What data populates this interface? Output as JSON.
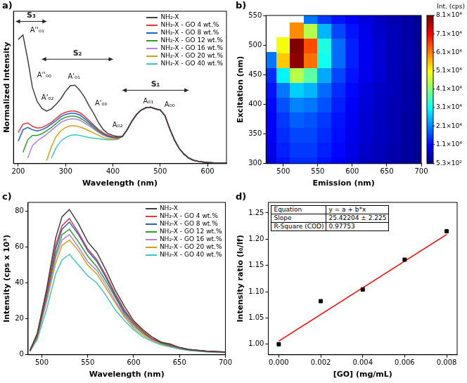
{
  "chart_data": [
    {
      "panel": "a)",
      "type": "line",
      "x_label": "Wavelength (nm)",
      "y_label": "Normalized Intensity",
      "xlim": [
        190,
        640
      ],
      "xticks": [
        200,
        300,
        400,
        500,
        600
      ],
      "ylim": [
        0,
        2.7
      ],
      "tick_labels": "x",
      "grid": false,
      "legend": "upper right",
      "x": [
        200,
        210,
        220,
        230,
        240,
        250,
        260,
        270,
        280,
        290,
        300,
        310,
        320,
        330,
        340,
        350,
        360,
        370,
        380,
        390,
        400,
        410,
        420,
        430,
        440,
        450,
        460,
        470,
        480,
        490,
        500,
        510,
        520,
        530,
        540,
        550,
        560,
        570,
        580,
        590,
        600,
        620,
        640
      ],
      "series": [
        {
          "name": "NH₂-X",
          "color": "#404040",
          "values": [
            2.2,
            2.28,
            1.85,
            1.35,
            1.1,
            0.98,
            0.93,
            0.97,
            1.05,
            1.15,
            1.28,
            1.38,
            1.39,
            1.3,
            1.18,
            1.02,
            0.88,
            0.72,
            0.6,
            0.53,
            0.5,
            0.48,
            0.48,
            0.6,
            0.75,
            0.87,
            0.95,
            0.99,
            1.0,
            0.97,
            0.95,
            0.85,
            0.62,
            0.42,
            0.27,
            0.17,
            0.1,
            0.06,
            0.04,
            0.03,
            0.02,
            0.01,
            0.01
          ]
        },
        {
          "name": "NH₂-X - GO  4 wt.%",
          "color": "#e8343a",
          "values": [
            0.55,
            0.7,
            0.72,
            0.66,
            0.63,
            0.64,
            0.68,
            0.73,
            0.8,
            0.87,
            0.91,
            0.93,
            0.93,
            0.9,
            0.84,
            0.76,
            0.68,
            0.6,
            0.54,
            0.5,
            0.48,
            0.47,
            0.48,
            0.6,
            0.75,
            0.87,
            0.95,
            0.99,
            1.0,
            0.97,
            0.95,
            0.85,
            0.62,
            0.42,
            0.27,
            0.17,
            0.1,
            0.06,
            0.04,
            0.03,
            0.02,
            0.01,
            0.01
          ]
        },
        {
          "name": "NH₂-X - GO  8 wt.%",
          "color": "#1f5fd6",
          "values": [
            0.4,
            0.6,
            0.64,
            0.6,
            0.58,
            0.6,
            0.64,
            0.7,
            0.76,
            0.83,
            0.87,
            0.89,
            0.89,
            0.86,
            0.8,
            0.73,
            0.66,
            0.59,
            0.53,
            0.49,
            0.47,
            0.46,
            0.48,
            0.6,
            0.75,
            0.87,
            0.95,
            0.99,
            1.0,
            0.97,
            0.95,
            0.85,
            0.62,
            0.42,
            0.27,
            0.17,
            0.1,
            0.06,
            0.04,
            0.03,
            0.02,
            0.01,
            0.01
          ]
        },
        {
          "name": "NH₂-X - GO 12 wt.%",
          "color": "#2ca02c",
          "values": [
            null,
            0.2,
            0.42,
            0.5,
            0.5,
            0.53,
            0.58,
            0.64,
            0.71,
            0.78,
            0.82,
            0.84,
            0.84,
            0.81,
            0.76,
            0.7,
            0.63,
            0.57,
            0.52,
            0.48,
            0.46,
            0.45,
            0.48,
            0.6,
            0.75,
            0.87,
            0.95,
            0.99,
            1.0,
            0.97,
            0.95,
            0.85,
            0.62,
            0.42,
            0.27,
            0.17,
            0.1,
            0.06,
            0.04,
            0.03,
            0.02,
            0.01,
            0.01
          ]
        },
        {
          "name": "NH₂-X - GO 16 wt.%",
          "color": "#b77fe0",
          "values": [
            null,
            null,
            0.1,
            0.32,
            0.4,
            0.46,
            0.52,
            0.59,
            0.66,
            0.73,
            0.77,
            0.79,
            0.79,
            0.77,
            0.72,
            0.67,
            0.61,
            0.55,
            0.5,
            0.47,
            0.45,
            0.44,
            0.48,
            0.6,
            0.75,
            0.87,
            0.95,
            0.99,
            1.0,
            0.97,
            0.95,
            0.85,
            0.62,
            0.42,
            0.27,
            0.17,
            0.1,
            0.06,
            0.04,
            0.03,
            0.02,
            0.01,
            0.01
          ]
        },
        {
          "name": "NH₂-X - GO 20 wt.%",
          "color": "#d4a017",
          "values": [
            null,
            null,
            null,
            null,
            null,
            null,
            0.05,
            0.3,
            0.48,
            0.58,
            0.64,
            0.67,
            0.67,
            0.65,
            0.62,
            0.58,
            0.54,
            0.5,
            0.46,
            0.44,
            0.43,
            0.43,
            0.48,
            0.6,
            0.75,
            0.87,
            0.95,
            0.99,
            1.0,
            0.97,
            0.95,
            0.85,
            0.62,
            0.42,
            0.27,
            0.17,
            0.1,
            0.06,
            0.04,
            0.03,
            0.02,
            0.01,
            0.01
          ]
        },
        {
          "name": "NH₂-X - GO 40 wt.%",
          "color": "#3cc8c8",
          "values": [
            null,
            null,
            null,
            null,
            null,
            null,
            null,
            0.1,
            0.28,
            0.4,
            0.46,
            0.5,
            0.51,
            0.5,
            0.48,
            0.46,
            0.45,
            0.44,
            0.43,
            0.42,
            0.42,
            0.43,
            0.48,
            0.6,
            0.75,
            0.87,
            0.95,
            0.99,
            1.0,
            0.97,
            0.95,
            0.85,
            0.62,
            0.42,
            0.27,
            0.17,
            0.1,
            0.06,
            0.04,
            0.03,
            0.02,
            0.01,
            0.01
          ]
        }
      ],
      "annotations": [
        {
          "text": "A''₀₁",
          "x": 240,
          "y": 2.3
        },
        {
          "text": "A''₀₀",
          "x": 255,
          "y": 1.5
        },
        {
          "text": "A'₀₂",
          "x": 262,
          "y": 1.1
        },
        {
          "text": "A'₀₁",
          "x": 318,
          "y": 1.48
        },
        {
          "text": "A'₀₀",
          "x": 375,
          "y": 1.0
        },
        {
          "text": "A₀₂",
          "x": 410,
          "y": 0.62
        },
        {
          "text": "A₀₁",
          "x": 475,
          "y": 1.04
        },
        {
          "text": "A₀₀",
          "x": 520,
          "y": 0.98
        }
      ],
      "brackets": [
        {
          "text": "S₃",
          "x1": 195,
          "x2": 260,
          "y": 2.52
        },
        {
          "text": "S₂",
          "x1": 250,
          "x2": 400,
          "y": 1.85
        },
        {
          "text": "S₁",
          "x1": 420,
          "x2": 560,
          "y": 1.3
        }
      ]
    },
    {
      "panel": "b)",
      "type": "heatmap",
      "x_label": "Emission (nm)",
      "y_label": "Excitation (nm)",
      "xlim": [
        475,
        700
      ],
      "xticks": [
        500,
        550,
        600,
        650,
        700
      ],
      "ylim": [
        300,
        550
      ],
      "yticks": [
        300,
        350,
        400,
        450,
        500,
        550
      ],
      "grid": false,
      "x": [
        480,
        500,
        520,
        540,
        560,
        580,
        600,
        620,
        640,
        660,
        680,
        700
      ],
      "y": [
        300,
        325,
        350,
        375,
        400,
        425,
        450,
        475,
        500,
        525,
        550
      ],
      "cells": [
        [
          8000,
          12000,
          14000,
          14000,
          12000,
          10000,
          8000,
          6000,
          5000,
          4000,
          3000,
          2000
        ],
        [
          9000,
          13000,
          15000,
          15000,
          13000,
          11000,
          8500,
          6500,
          5000,
          4000,
          3000,
          2000
        ],
        [
          10000,
          14000,
          16000,
          16000,
          14000,
          11500,
          9000,
          7000,
          5500,
          4500,
          3000,
          2000
        ],
        [
          10000,
          15000,
          18000,
          17000,
          15000,
          12000,
          9500,
          7000,
          5500,
          4500,
          3000,
          2000
        ],
        [
          11000,
          17000,
          21000,
          20000,
          17000,
          13000,
          10000,
          7500,
          6000,
          4500,
          3500,
          2000
        ],
        [
          12000,
          20000,
          27000,
          25000,
          19000,
          14000,
          11000,
          8000,
          6000,
          5000,
          3500,
          2500
        ],
        [
          14000,
          30000,
          45000,
          38000,
          24000,
          16000,
          12000,
          9000,
          7000,
          5000,
          3500,
          2500
        ],
        [
          20000,
          55000,
          80000,
          62000,
          32000,
          19000,
          13000,
          9500,
          7000,
          5000,
          4000,
          2500
        ],
        [
          null,
          50000,
          81000,
          65000,
          33000,
          19000,
          13000,
          9500,
          7000,
          5000,
          4000,
          2500
        ],
        [
          null,
          null,
          60000,
          45000,
          25000,
          16000,
          12000,
          9000,
          6500,
          5000,
          3500,
          2500
        ],
        [
          null,
          null,
          null,
          20000,
          15000,
          12000,
          10000,
          8000,
          6000,
          4500,
          3500,
          2000
        ]
      ],
      "colorbar": {
        "title": "Int. (cps)",
        "range": [
          530,
          81000
        ],
        "ticks": [
          {
            "value": 81000,
            "label": "8.1×10⁴"
          },
          {
            "value": 71000,
            "label": "7.1×10⁴"
          },
          {
            "value": 61000,
            "label": "6.1×10⁴"
          },
          {
            "value": 51000,
            "label": "5.1×10⁴"
          },
          {
            "value": 41000,
            "label": "4.1×10⁴"
          },
          {
            "value": 31000,
            "label": "3.1×10⁴"
          },
          {
            "value": 21000,
            "label": "2.1×10⁴"
          },
          {
            "value": 11000,
            "label": "1.1×10⁴"
          },
          {
            "value": 530,
            "label": "5.3×10²"
          }
        ]
      }
    },
    {
      "panel": "c)",
      "type": "line",
      "x_label": "Wavelength (nm)",
      "y_label": "Intensity (cps x 10³)",
      "xlim": [
        485,
        700
      ],
      "xticks": [
        500,
        550,
        600,
        650,
        700
      ],
      "ylim": [
        0,
        85
      ],
      "yticks": [
        0,
        20,
        40,
        60,
        80
      ],
      "grid": false,
      "legend": "upper right",
      "x": [
        487,
        495,
        505,
        515,
        522,
        530,
        540,
        550,
        560,
        570,
        580,
        590,
        600,
        610,
        620,
        630,
        640,
        650,
        660,
        680,
        700
      ],
      "series": [
        {
          "name": "NH₂-X",
          "color": "#404040",
          "values": [
            2.4,
            12,
            36,
            65,
            77,
            81,
            73,
            63,
            57,
            47,
            36,
            27,
            19,
            14,
            10,
            7,
            6,
            4,
            3,
            2,
            1.6
          ]
        },
        {
          "name": "NH₂-X - GO  4 wt.%",
          "color": "#e8343a",
          "values": [
            2.3,
            11,
            34,
            61,
            72,
            76,
            68,
            59,
            53,
            44,
            34,
            25,
            18,
            13,
            9,
            7,
            5.5,
            4,
            3,
            2,
            1.5
          ]
        },
        {
          "name": "NH₂-X - GO  8 wt.%",
          "color": "#1f5fd6",
          "values": [
            2.2,
            11,
            33,
            59,
            70,
            74,
            67,
            58,
            52,
            43,
            33,
            24,
            18,
            13,
            9,
            7,
            5.3,
            4,
            3,
            2,
            1.5
          ]
        },
        {
          "name": "NH₂-X - GO 12 wt.%",
          "color": "#2ca02c",
          "values": [
            2.1,
            10,
            32,
            56,
            67,
            70,
            63,
            55,
            49,
            41,
            32,
            23,
            17,
            12,
            9,
            6.5,
            5,
            3.8,
            2.8,
            1.8,
            1.4
          ]
        },
        {
          "name": "NH₂-X - GO 16 wt.%",
          "color": "#b77fe0",
          "values": [
            2,
            10,
            30,
            54,
            64,
            67,
            60,
            52,
            47,
            39,
            30,
            22,
            16,
            12,
            8.5,
            6.3,
            4.8,
            3.6,
            2.7,
            1.8,
            1.3
          ]
        },
        {
          "name": "NH₂-X - GO 20 wt.%",
          "color": "#d4a017",
          "values": [
            1.9,
            9.5,
            29,
            51,
            61,
            64,
            58,
            50,
            45,
            37,
            29,
            21,
            15,
            11,
            8,
            6,
            4.6,
            3.5,
            2.6,
            1.7,
            1.3
          ]
        },
        {
          "name": "NH₂-X - GO 40 wt.%",
          "color": "#3cc8c8",
          "values": [
            1.7,
            8.5,
            25,
            45,
            53,
            56,
            50,
            44,
            40,
            33,
            25,
            19,
            14,
            10,
            7.5,
            5.5,
            4.3,
            3.2,
            2.4,
            1.6,
            1.2
          ]
        }
      ]
    },
    {
      "panel": "d)",
      "type": "scatter",
      "x_label": "[GO] (mg/mL)",
      "y_label": "Intensity ratio (I₀/If)",
      "xlim": [
        -0.0005,
        0.0085
      ],
      "xticks": [
        {
          "value": 0,
          "label": "0.000"
        },
        0.002,
        0.004,
        0.006,
        0.008
      ],
      "ylim": [
        0.98,
        1.27
      ],
      "yticks": [
        {
          "value": 1,
          "label": "1.00"
        },
        1.05,
        {
          "value": 1.1,
          "label": "1.10"
        },
        1.15,
        {
          "value": 1.2,
          "label": "1.20"
        },
        1.25
      ],
      "grid": false,
      "series": [
        {
          "type": "scatter",
          "marker": "square",
          "color": "#000000",
          "x": [
            0,
            0.002,
            0.004,
            0.006,
            0.008
          ],
          "values": [
            1.0,
            1.082,
            1.104,
            1.161,
            1.215
          ]
        },
        {
          "type": "line",
          "color": "#ff0000",
          "x": [
            0,
            0.008
          ],
          "values": [
            1.006,
            1.209
          ]
        }
      ],
      "table": {
        "rows": [
          [
            "Equation",
            "y = a + b*x"
          ],
          [
            "Slope",
            "25.42204 ± 2.225"
          ],
          [
            "R-Square (COD)",
            "0.97753"
          ]
        ]
      }
    }
  ]
}
